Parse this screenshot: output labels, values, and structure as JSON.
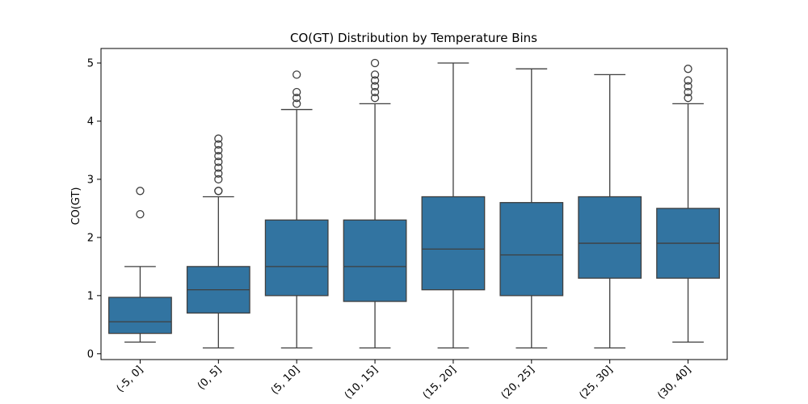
{
  "chart_data": {
    "type": "boxplot",
    "title": "CO(GT) Distribution by Temperature Bins",
    "xlabel": "",
    "ylabel": "CO(GT)",
    "ylim": [
      -0.1,
      5.25
    ],
    "yticks": [
      0,
      1,
      2,
      3,
      4,
      5
    ],
    "box_color": "#3274a1",
    "line_color": "#3f3f3f",
    "categories": [
      "(-5, 0]",
      "(0, 5]",
      "(5, 10]",
      "(10, 15]",
      "(15, 20]",
      "(20, 25]",
      "(25, 30]",
      "(30, 40]"
    ],
    "boxes": [
      {
        "whislo": 0.2,
        "q1": 0.35,
        "med": 0.55,
        "q3": 0.97,
        "whishi": 1.5,
        "fliers": [
          2.4,
          2.8
        ]
      },
      {
        "whislo": 0.1,
        "q1": 0.7,
        "med": 1.1,
        "q3": 1.5,
        "whishi": 2.7,
        "fliers": [
          2.8,
          2.8,
          3.0,
          3.1,
          3.2,
          3.3,
          3.4,
          3.5,
          3.6,
          3.7
        ]
      },
      {
        "whislo": 0.1,
        "q1": 1.0,
        "med": 1.5,
        "q3": 2.3,
        "whishi": 4.2,
        "fliers": [
          4.3,
          4.4,
          4.5,
          4.8
        ]
      },
      {
        "whislo": 0.1,
        "q1": 0.9,
        "med": 1.5,
        "q3": 2.3,
        "whishi": 4.3,
        "fliers": [
          4.4,
          4.5,
          4.6,
          4.7,
          4.8,
          5.0
        ]
      },
      {
        "whislo": 0.1,
        "q1": 1.1,
        "med": 1.8,
        "q3": 2.7,
        "whishi": 5.0,
        "fliers": []
      },
      {
        "whislo": 0.1,
        "q1": 1.0,
        "med": 1.7,
        "q3": 2.6,
        "whishi": 4.9,
        "fliers": []
      },
      {
        "whislo": 0.1,
        "q1": 1.3,
        "med": 1.9,
        "q3": 2.7,
        "whishi": 4.8,
        "fliers": []
      },
      {
        "whislo": 0.2,
        "q1": 1.3,
        "med": 1.9,
        "q3": 2.5,
        "whishi": 4.3,
        "fliers": [
          4.4,
          4.5,
          4.6,
          4.7,
          4.9
        ]
      }
    ],
    "grid": false,
    "legend": "none"
  }
}
